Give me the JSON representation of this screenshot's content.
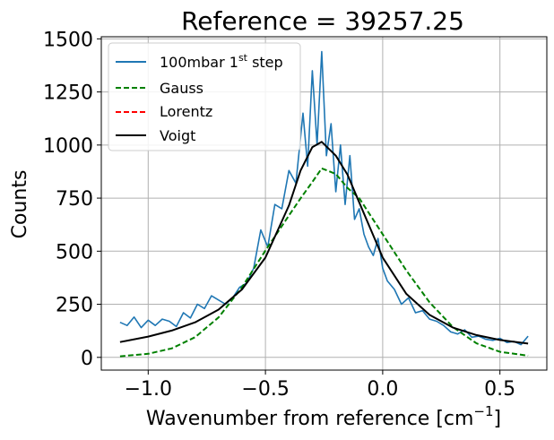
{
  "chart_data": {
    "type": "line",
    "title": "Reference = 39257.25",
    "xlabel": "Wavenumber from reference [cm",
    "xlabel_sup": "−1",
    "xlabel_end": "]",
    "ylabel": "Counts",
    "xlim": [
      -1.2,
      0.7
    ],
    "ylim": [
      -60,
      1510
    ],
    "grid": true,
    "legend_position": "upper-left",
    "x_ticks": [
      -1.0,
      -0.5,
      0.0,
      0.5
    ],
    "x_tick_labels": [
      "−1.0",
      "−0.5",
      "0.0",
      "0.5"
    ],
    "y_ticks": [
      0,
      250,
      500,
      750,
      1000,
      1250,
      1500
    ],
    "y_tick_labels": [
      "0",
      "250",
      "500",
      "750",
      "1000",
      "1250",
      "1500"
    ],
    "series": [
      {
        "name": "100mbar 1",
        "name_sup": "st",
        "name_end": " step",
        "style": "solid",
        "color": "#1f77b4",
        "x": [
          -1.12,
          -1.09,
          -1.06,
          -1.03,
          -1.0,
          -0.97,
          -0.94,
          -0.91,
          -0.88,
          -0.85,
          -0.82,
          -0.79,
          -0.76,
          -0.73,
          -0.7,
          -0.67,
          -0.64,
          -0.61,
          -0.58,
          -0.55,
          -0.52,
          -0.49,
          -0.46,
          -0.43,
          -0.4,
          -0.37,
          -0.34,
          -0.32,
          -0.3,
          -0.28,
          -0.26,
          -0.24,
          -0.22,
          -0.2,
          -0.18,
          -0.16,
          -0.14,
          -0.12,
          -0.1,
          -0.08,
          -0.06,
          -0.04,
          -0.02,
          0.0,
          0.02,
          0.05,
          0.08,
          0.11,
          0.14,
          0.17,
          0.2,
          0.23,
          0.26,
          0.29,
          0.32,
          0.35,
          0.38,
          0.41,
          0.44,
          0.47,
          0.5,
          0.53,
          0.56,
          0.59,
          0.62
        ],
        "y": [
          165,
          150,
          190,
          140,
          175,
          150,
          180,
          170,
          145,
          210,
          185,
          250,
          230,
          290,
          270,
          250,
          280,
          330,
          350,
          420,
          600,
          520,
          720,
          700,
          880,
          820,
          1150,
          900,
          1350,
          1000,
          1440,
          950,
          1100,
          780,
          1000,
          720,
          950,
          650,
          700,
          580,
          520,
          480,
          560,
          420,
          360,
          320,
          250,
          280,
          210,
          220,
          180,
          170,
          150,
          120,
          110,
          130,
          95,
          100,
          85,
          80,
          90,
          70,
          75,
          60,
          100
        ]
      },
      {
        "name": "Gauss",
        "style": "dashed",
        "color": "#008000",
        "x": [
          -1.12,
          -1.0,
          -0.9,
          -0.8,
          -0.7,
          -0.6,
          -0.5,
          -0.4,
          -0.35,
          -0.3,
          -0.26,
          -0.2,
          -0.15,
          -0.1,
          0.0,
          0.1,
          0.2,
          0.3,
          0.4,
          0.5,
          0.62
        ],
        "y": [
          5,
          17,
          42,
          95,
          188,
          330,
          503,
          668,
          749,
          826,
          890,
          864,
          798,
          750,
          580,
          410,
          259,
          142,
          66,
          26,
          8
        ]
      },
      {
        "name": "Lorentz",
        "style": "dashed",
        "color": "#ff0000",
        "x": [],
        "y": []
      },
      {
        "name": "Voigt",
        "style": "solid",
        "color": "#000000",
        "x": [
          -1.12,
          -1.0,
          -0.9,
          -0.8,
          -0.7,
          -0.6,
          -0.5,
          -0.4,
          -0.35,
          -0.3,
          -0.26,
          -0.2,
          -0.15,
          -0.1,
          0.0,
          0.1,
          0.2,
          0.3,
          0.4,
          0.5,
          0.62
        ],
        "y": [
          72,
          98,
          126,
          165,
          225,
          320,
          470,
          715,
          880,
          990,
          1015,
          950,
          860,
          730,
          470,
          300,
          200,
          140,
          105,
          82,
          65
        ]
      }
    ]
  }
}
